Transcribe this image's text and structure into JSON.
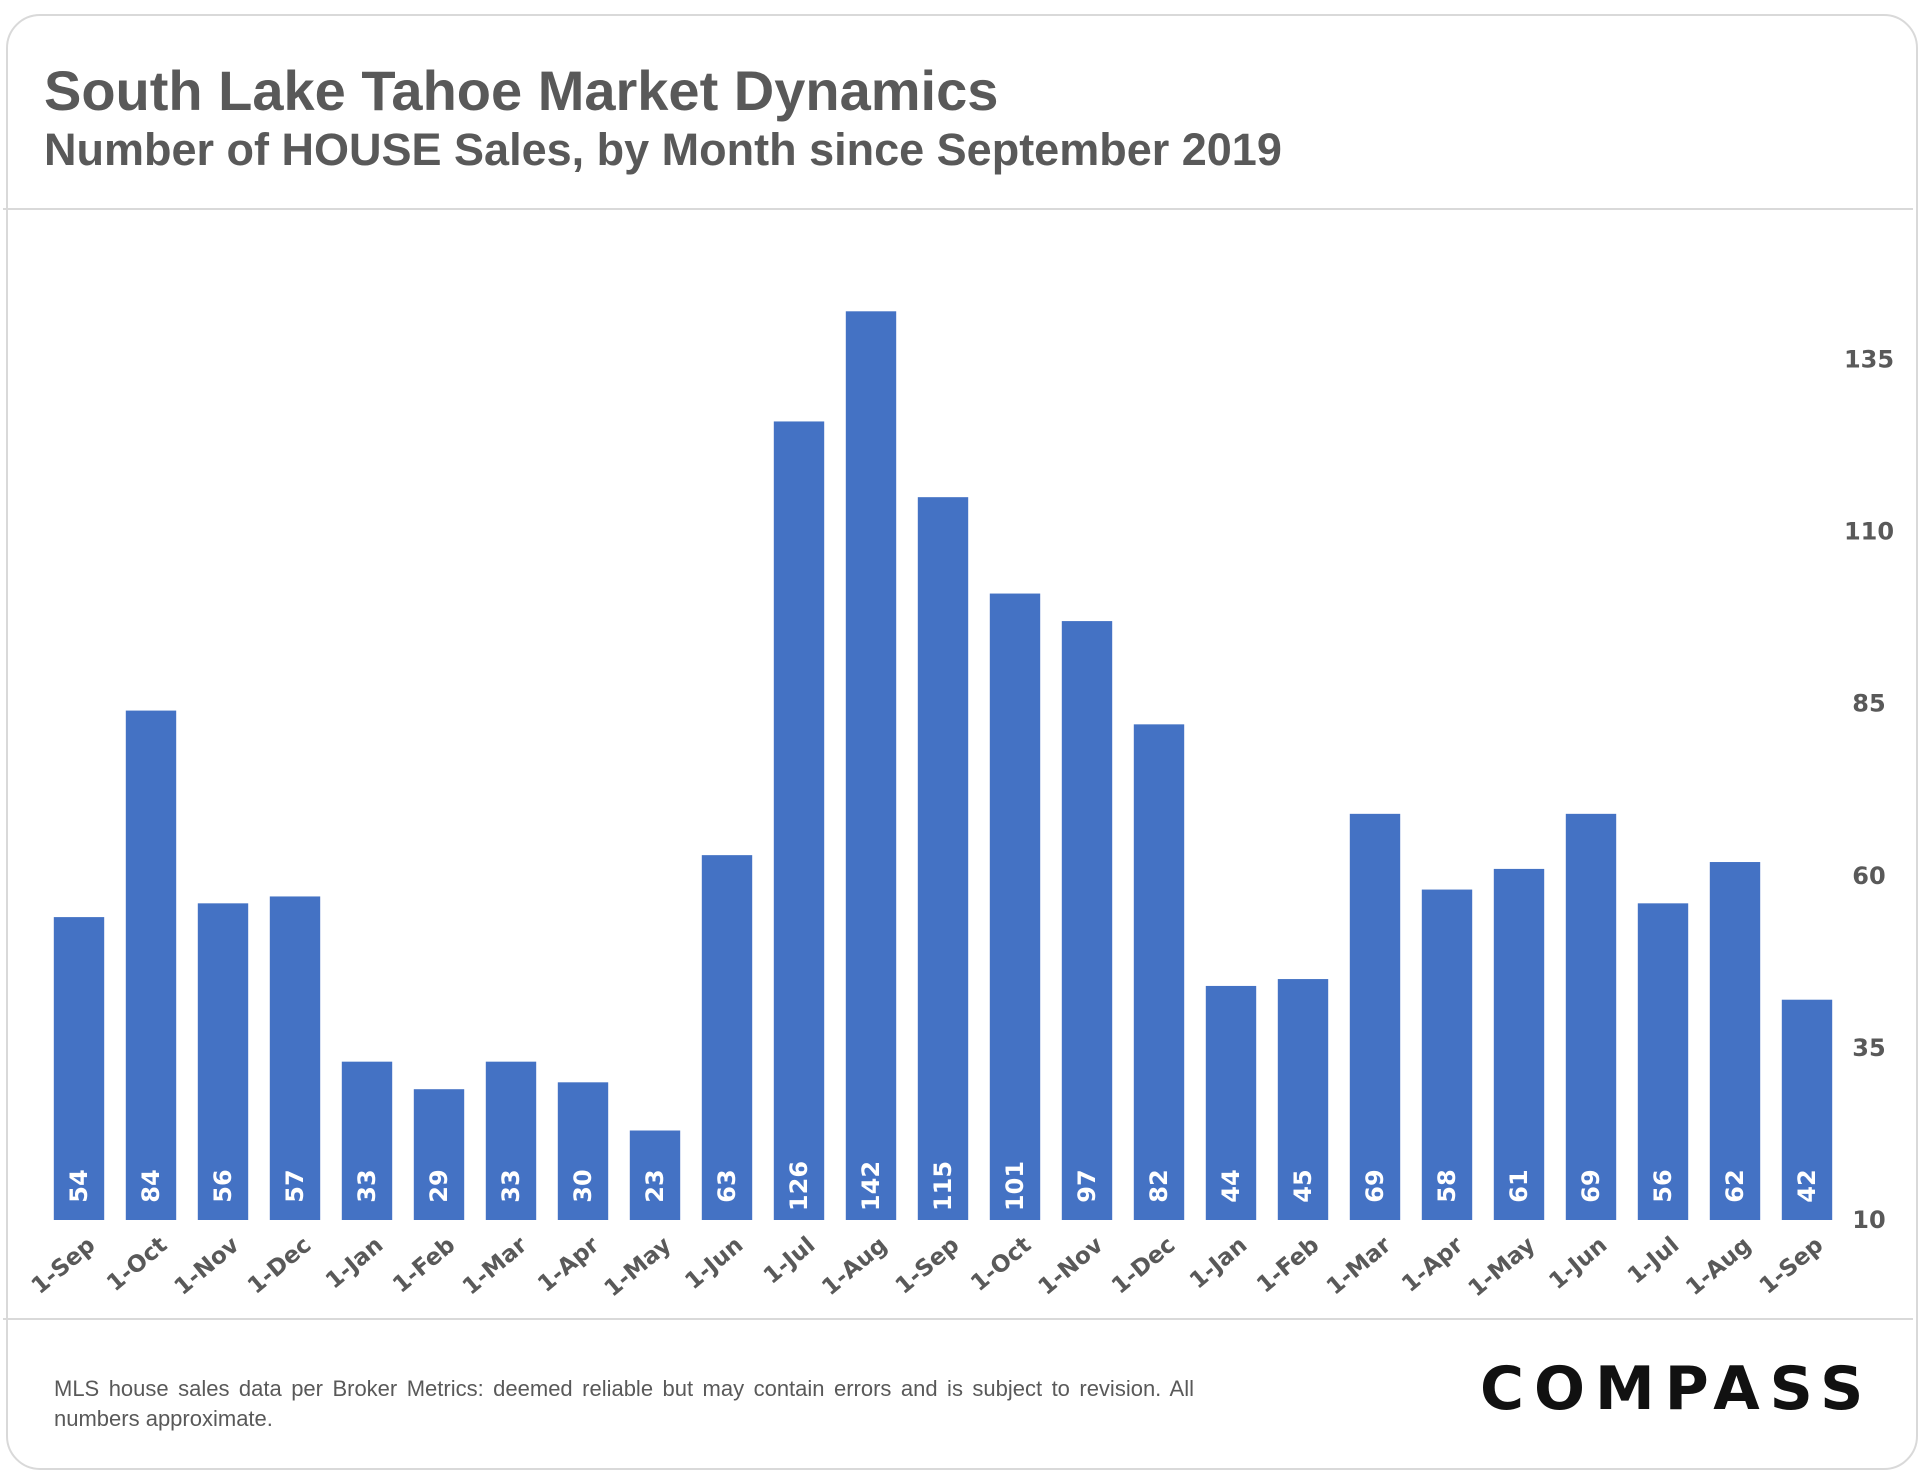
{
  "header": {
    "title": "South Lake Tahoe Market Dynamics",
    "subtitle": "Number of HOUSE Sales, by Month since September 2019"
  },
  "footer": {
    "note": "MLS house sales data per Broker Metrics: deemed reliable but may contain errors and is subject to revision. All numbers approximate.",
    "logo": "COMPASS"
  },
  "colors": {
    "bar": "#4472c4",
    "axis_text": "#595959",
    "bar_label": "#ffffff"
  },
  "chart_data": {
    "type": "bar",
    "title": "South Lake Tahoe Market Dynamics",
    "subtitle": "Number of HOUSE Sales, by Month since September 2019",
    "categories": [
      "1-Sep",
      "1-Oct",
      "1-Nov",
      "1-Dec",
      "1-Jan",
      "1-Feb",
      "1-Mar",
      "1-Apr",
      "1-May",
      "1-Jun",
      "1-Jul",
      "1-Aug",
      "1-Sep",
      "1-Oct",
      "1-Nov",
      "1-Dec",
      "1-Jan",
      "1-Feb",
      "1-Mar",
      "1-Apr",
      "1-May",
      "1-Jun",
      "1-Jul",
      "1-Aug",
      "1-Sep"
    ],
    "values": [
      54,
      84,
      56,
      57,
      33,
      29,
      33,
      30,
      23,
      63,
      126,
      142,
      115,
      101,
      97,
      82,
      44,
      45,
      69,
      58,
      61,
      69,
      56,
      62,
      42
    ],
    "data_labels": [
      "54",
      "84",
      "56",
      "57",
      "33",
      "29",
      "33",
      "30",
      "23",
      "63",
      "126",
      "142",
      "115",
      "101",
      "97",
      "82",
      "44",
      "45",
      "69",
      "58",
      "61",
      "69",
      "56",
      "62",
      "42"
    ],
    "y_ticks": [
      "10",
      "35",
      "60",
      "85",
      "110",
      "135"
    ],
    "y_tick_values": [
      10,
      35,
      60,
      85,
      110,
      135
    ],
    "ylim": [
      10,
      148
    ],
    "y_axis_side": "right",
    "grid": false,
    "legend": "none"
  }
}
